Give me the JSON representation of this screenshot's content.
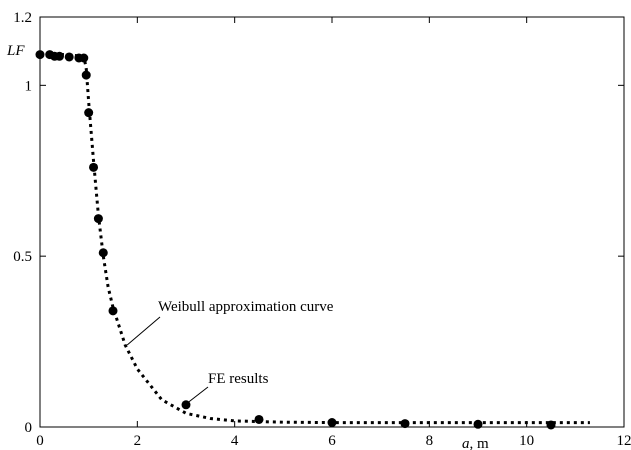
{
  "chart_data": {
    "type": "scatter",
    "xlabel": "a",
    "xlabel_unit": ", m",
    "ylabel": "LF",
    "xlim": [
      0,
      12
    ],
    "ylim": [
      0,
      1.2
    ],
    "x_ticks": [
      0,
      2,
      4,
      6,
      8,
      10,
      12
    ],
    "y_ticks": [
      0,
      0.5,
      1
    ],
    "y_top_label": "1.2",
    "grid": false,
    "series": [
      {
        "name": "FE results",
        "style": "markers",
        "color": "#000000",
        "points": [
          [
            0.0,
            1.09
          ],
          [
            0.2,
            1.09
          ],
          [
            0.3,
            1.085
          ],
          [
            0.4,
            1.085
          ],
          [
            0.6,
            1.083
          ],
          [
            0.8,
            1.08
          ],
          [
            0.9,
            1.08
          ],
          [
            0.95,
            1.03
          ],
          [
            1.0,
            0.92
          ],
          [
            1.1,
            0.76
          ],
          [
            1.2,
            0.61
          ],
          [
            1.3,
            0.51
          ],
          [
            1.5,
            0.34
          ],
          [
            3.0,
            0.065
          ],
          [
            4.5,
            0.022
          ],
          [
            6.0,
            0.013
          ],
          [
            7.5,
            0.01
          ],
          [
            9.0,
            0.008
          ],
          [
            10.5,
            0.006
          ]
        ]
      },
      {
        "name": "Weibull approximation curve",
        "style": "dotted-line",
        "color": "#000000",
        "points": [
          [
            0.0,
            1.095
          ],
          [
            0.5,
            1.09
          ],
          [
            0.9,
            1.085
          ],
          [
            0.95,
            1.05
          ],
          [
            1.0,
            0.95
          ],
          [
            1.1,
            0.78
          ],
          [
            1.2,
            0.62
          ],
          [
            1.3,
            0.5
          ],
          [
            1.4,
            0.41
          ],
          [
            1.5,
            0.35
          ],
          [
            1.75,
            0.24
          ],
          [
            2.0,
            0.17
          ],
          [
            2.5,
            0.08
          ],
          [
            3.0,
            0.04
          ],
          [
            3.5,
            0.025
          ],
          [
            4.0,
            0.018
          ],
          [
            5.0,
            0.014
          ],
          [
            6.0,
            0.013
          ],
          [
            8.0,
            0.013
          ],
          [
            10.0,
            0.013
          ],
          [
            11.3,
            0.013
          ]
        ]
      }
    ],
    "annotations": [
      {
        "text": "Weibull approximation curve",
        "target": [
          1.75,
          0.24
        ]
      },
      {
        "text": "FE results",
        "target": [
          3.0,
          0.065
        ]
      }
    ]
  }
}
